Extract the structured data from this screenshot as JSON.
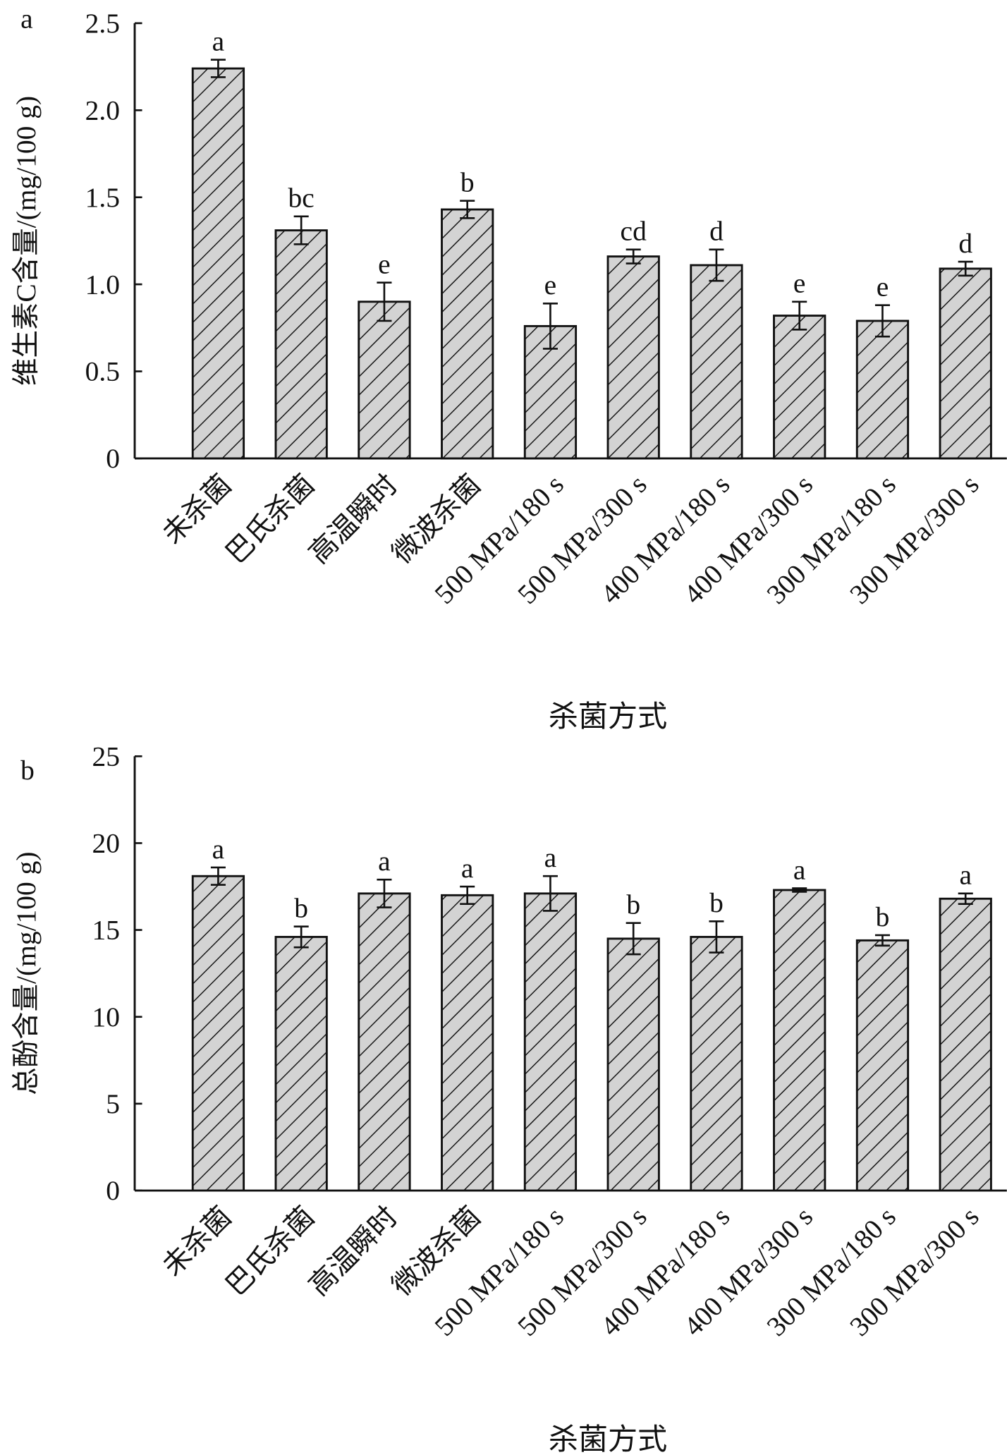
{
  "chart_data": [
    {
      "panel_label": "a",
      "type": "bar",
      "categories": [
        "未杀菌",
        "巴氏杀菌",
        "高温瞬时",
        "微波杀菌",
        "500 MPa/180 s",
        "500 MPa/300 s",
        "400 MPa/180 s",
        "400 MPa/300 s",
        "300 MPa/180 s",
        "300 MPa/300 s"
      ],
      "values": [
        2.24,
        1.31,
        0.9,
        1.43,
        0.76,
        1.16,
        1.11,
        0.82,
        0.79,
        1.09
      ],
      "errors": [
        0.05,
        0.08,
        0.11,
        0.05,
        0.13,
        0.04,
        0.09,
        0.08,
        0.09,
        0.04
      ],
      "significance": [
        "a",
        "bc",
        "e",
        "b",
        "e",
        "cd",
        "d",
        "e",
        "e",
        "d"
      ],
      "xlabel": "杀菌方式",
      "ylabel": "维生素C含量/(mg/100 g)",
      "ylim": [
        0,
        2.5
      ],
      "yticks": [
        0,
        0.5,
        1.0,
        1.5,
        2.0,
        2.5
      ],
      "ytick_labels": [
        "0",
        "0.5",
        "1.0",
        "1.5",
        "2.0",
        "2.5"
      ],
      "grid": false
    },
    {
      "panel_label": "b",
      "type": "bar",
      "categories": [
        "未杀菌",
        "巴氏杀菌",
        "高温瞬时",
        "微波杀菌",
        "500 MPa/180 s",
        "500 MPa/300 s",
        "400 MPa/180 s",
        "400 MPa/300 s",
        "300 MPa/180 s",
        "300 MPa/300 s"
      ],
      "values": [
        18.1,
        14.6,
        17.1,
        17.0,
        17.1,
        14.5,
        14.6,
        17.3,
        14.4,
        16.8
      ],
      "errors": [
        0.5,
        0.6,
        0.8,
        0.5,
        1.0,
        0.9,
        0.9,
        0.1,
        0.3,
        0.3
      ],
      "significance": [
        "a",
        "b",
        "a",
        "a",
        "a",
        "b",
        "b",
        "a",
        "b",
        "a"
      ],
      "xlabel": "杀菌方式",
      "ylabel": "总酚含量/(mg/100 g)",
      "ylim": [
        0,
        25
      ],
      "yticks": [
        0,
        5,
        10,
        15,
        20,
        25
      ],
      "ytick_labels": [
        "0",
        "5",
        "10",
        "15",
        "20",
        "25"
      ],
      "grid": false
    }
  ],
  "colors": {
    "bar_fill": "#d3d3d3",
    "stroke": "#111111"
  }
}
